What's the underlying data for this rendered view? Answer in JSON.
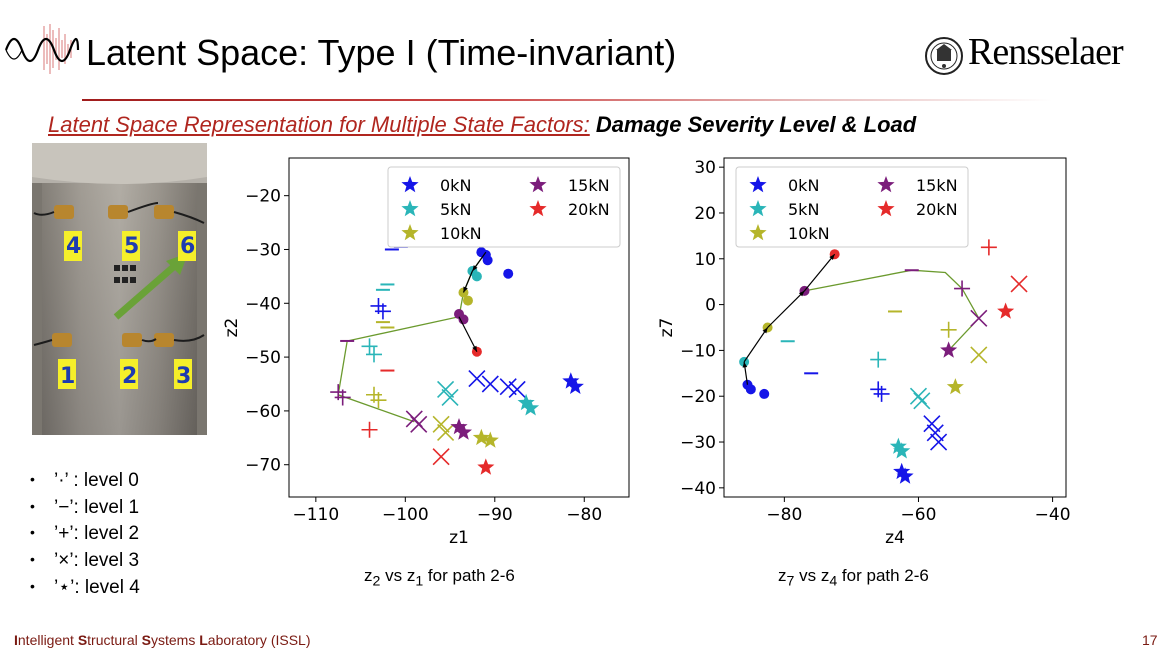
{
  "header": {
    "title": "Latent Space: Type I (Time-invariant)",
    "institution": "Rensselaer"
  },
  "subtitle": {
    "part1": "Latent Space Representation for Multiple State Factors:",
    "part2": "Damage Severity Level & Load"
  },
  "photo": {
    "sensor_labels": [
      "4",
      "5",
      "6",
      "1",
      "2",
      "3"
    ]
  },
  "levels_legend": [
    {
      "bullet": "•",
      "text": "’·’ : level 0"
    },
    {
      "bullet": "•",
      "text": "’−’: level 1"
    },
    {
      "bullet": "•",
      "text": "’+’: level 2"
    },
    {
      "bullet": "•",
      "text": "’×’: level 3"
    },
    {
      "bullet": "•",
      "text": "’⋆’: level 4"
    }
  ],
  "colors": {
    "0kN": "#1515e8",
    "5kN": "#2ab5b8",
    "10kN": "#b5b52a",
    "15kN": "#7b1d7b",
    "20kN": "#e52a2a",
    "path": "#6b9a2e",
    "accent": "#b0261f"
  },
  "captions": {
    "left": {
      "a": "z",
      "a_sub": "2",
      "mid": " vs z",
      "b_sub": "1",
      "rest": " for path 2-6"
    },
    "right": {
      "a": "z",
      "a_sub": "7",
      "mid": " vs z",
      "b_sub": "4",
      "rest": " for path 2-6"
    }
  },
  "footer": {
    "lab_parts": [
      "I",
      "ntelligent ",
      "S",
      "tructural ",
      "S",
      "ystems ",
      "L",
      "aboratory (ISSL)"
    ],
    "page_number": "17"
  },
  "chart_data": [
    {
      "type": "scatter",
      "title": "",
      "xlabel": "z1",
      "ylabel": "z2",
      "xlim": [
        -113,
        -75
      ],
      "ylim": [
        -76,
        -13
      ],
      "xticks": [
        -110,
        -100,
        -90,
        -80
      ],
      "yticks": [
        -20,
        -30,
        -40,
        -50,
        -60,
        -70
      ],
      "legend": {
        "placement": "top-right",
        "entries": [
          {
            "label": "0kN",
            "color": "#1515e8"
          },
          {
            "label": "15kN",
            "color": "#7b1d7b"
          },
          {
            "label": "5kN",
            "color": "#2ab5b8"
          },
          {
            "label": "20kN",
            "color": "#e52a2a"
          },
          {
            "label": "10kN",
            "color": "#b5b52a"
          }
        ]
      },
      "series": [
        {
          "load": "0kN",
          "points": [
            {
              "x": -91.5,
              "y": -30.5,
              "level": 0
            },
            {
              "x": -91,
              "y": -31,
              "level": 0
            },
            {
              "x": -90.8,
              "y": -32,
              "level": 0
            },
            {
              "x": -88.5,
              "y": -34.5,
              "level": 0
            },
            {
              "x": -100.5,
              "y": -29.5,
              "level": 1
            },
            {
              "x": -101.5,
              "y": -30,
              "level": 1
            },
            {
              "x": -103,
              "y": -40.5,
              "level": 2
            },
            {
              "x": -102.5,
              "y": -41.5,
              "level": 2
            },
            {
              "x": -92,
              "y": -54,
              "level": 3
            },
            {
              "x": -90.5,
              "y": -55,
              "level": 3
            },
            {
              "x": -88.5,
              "y": -55.5,
              "level": 3
            },
            {
              "x": -87.5,
              "y": -56,
              "level": 3
            },
            {
              "x": -81.5,
              "y": -54.5,
              "level": 4
            },
            {
              "x": -81,
              "y": -55.5,
              "level": 4
            }
          ]
        },
        {
          "load": "5kN",
          "points": [
            {
              "x": -92.5,
              "y": -34,
              "level": 0
            },
            {
              "x": -92,
              "y": -35,
              "level": 0
            },
            {
              "x": -102,
              "y": -36.5,
              "level": 1
            },
            {
              "x": -102.5,
              "y": -37.5,
              "level": 1
            },
            {
              "x": -104,
              "y": -48,
              "level": 2
            },
            {
              "x": -103.5,
              "y": -49.5,
              "level": 2
            },
            {
              "x": -95.5,
              "y": -56,
              "level": 3
            },
            {
              "x": -95,
              "y": -57.5,
              "level": 3
            },
            {
              "x": -86.5,
              "y": -58.5,
              "level": 4
            },
            {
              "x": -86,
              "y": -59.5,
              "level": 4
            }
          ]
        },
        {
          "load": "10kN",
          "points": [
            {
              "x": -93.5,
              "y": -38,
              "level": 0
            },
            {
              "x": -93,
              "y": -39.5,
              "level": 0
            },
            {
              "x": -102.5,
              "y": -43.5,
              "level": 1
            },
            {
              "x": -102,
              "y": -44.5,
              "level": 1
            },
            {
              "x": -103.5,
              "y": -57,
              "level": 2
            },
            {
              "x": -103,
              "y": -58,
              "level": 2
            },
            {
              "x": -96,
              "y": -62.5,
              "level": 3
            },
            {
              "x": -95.5,
              "y": -64,
              "level": 3
            },
            {
              "x": -91.5,
              "y": -65,
              "level": 4
            },
            {
              "x": -90.5,
              "y": -65.5,
              "level": 4
            }
          ]
        },
        {
          "load": "15kN",
          "points": [
            {
              "x": -94,
              "y": -42,
              "level": 0
            },
            {
              "x": -93.5,
              "y": -43,
              "level": 0
            },
            {
              "x": -106.5,
              "y": -47,
              "level": 1
            },
            {
              "x": -107.5,
              "y": -56.5,
              "level": 2
            },
            {
              "x": -107,
              "y": -57.5,
              "level": 2
            },
            {
              "x": -99,
              "y": -61.5,
              "level": 3
            },
            {
              "x": -98.5,
              "y": -62.5,
              "level": 3
            },
            {
              "x": -94,
              "y": -63,
              "level": 4
            },
            {
              "x": -93.5,
              "y": -64,
              "level": 4
            }
          ]
        },
        {
          "load": "20kN",
          "points": [
            {
              "x": -92,
              "y": -49,
              "level": 0
            },
            {
              "x": -102,
              "y": -52.5,
              "level": 1
            },
            {
              "x": -104,
              "y": -63.5,
              "level": 2
            },
            {
              "x": -96,
              "y": -68.5,
              "level": 3
            },
            {
              "x": -91,
              "y": -70.5,
              "level": 4
            }
          ]
        }
      ],
      "path": {
        "color": "#6b9a2e",
        "points": [
          [
            -91,
            -30.5
          ],
          [
            -92.5,
            -34
          ],
          [
            -93.5,
            -38
          ],
          [
            -94,
            -42.5
          ],
          [
            -106.5,
            -47
          ],
          [
            -107.5,
            -57
          ],
          [
            -99,
            -62
          ]
        ]
      },
      "arrows": [
        {
          "from": [
            -91,
            -30.5
          ],
          "to": [
            -92.5,
            -34
          ]
        },
        {
          "from": [
            -92.5,
            -34
          ],
          "to": [
            -93.5,
            -38
          ]
        },
        {
          "from": [
            -94,
            -42.5
          ],
          "to": [
            -92,
            -49
          ]
        }
      ]
    },
    {
      "type": "scatter",
      "title": "",
      "xlabel": "z4",
      "ylabel": "z7",
      "xlim": [
        -89,
        -38
      ],
      "ylim": [
        -42,
        32
      ],
      "xticks": [
        -80,
        -60,
        -40
      ],
      "yticks": [
        30,
        20,
        10,
        0,
        -10,
        -20,
        -30,
        -40
      ],
      "legend": {
        "placement": "top-left",
        "entries": [
          {
            "label": "0kN",
            "color": "#1515e8"
          },
          {
            "label": "15kN",
            "color": "#7b1d7b"
          },
          {
            "label": "5kN",
            "color": "#2ab5b8"
          },
          {
            "label": "20kN",
            "color": "#e52a2a"
          },
          {
            "label": "10kN",
            "color": "#b5b52a"
          }
        ]
      },
      "series": [
        {
          "load": "0kN",
          "points": [
            {
              "x": -85.5,
              "y": -17.5,
              "level": 0
            },
            {
              "x": -85,
              "y": -18.5,
              "level": 0
            },
            {
              "x": -83,
              "y": -19.5,
              "level": 0
            },
            {
              "x": -76,
              "y": -15,
              "level": 1
            },
            {
              "x": -66,
              "y": -18.5,
              "level": 2
            },
            {
              "x": -65.5,
              "y": -19.5,
              "level": 2
            },
            {
              "x": -58,
              "y": -26,
              "level": 3
            },
            {
              "x": -57.5,
              "y": -28,
              "level": 3
            },
            {
              "x": -57,
              "y": -30,
              "level": 3
            },
            {
              "x": -62.5,
              "y": -36.5,
              "level": 4
            },
            {
              "x": -62,
              "y": -37.5,
              "level": 4
            }
          ]
        },
        {
          "load": "5kN",
          "points": [
            {
              "x": -86,
              "y": -12.5,
              "level": 0
            },
            {
              "x": -79.5,
              "y": -8,
              "level": 1
            },
            {
              "x": -66,
              "y": -12,
              "level": 2
            },
            {
              "x": -60,
              "y": -20,
              "level": 3
            },
            {
              "x": -59.5,
              "y": -21,
              "level": 3
            },
            {
              "x": -63,
              "y": -31,
              "level": 4
            },
            {
              "x": -62.5,
              "y": -32,
              "level": 4
            }
          ]
        },
        {
          "load": "10kN",
          "points": [
            {
              "x": -82.5,
              "y": -5,
              "level": 0
            },
            {
              "x": -63.5,
              "y": -1.5,
              "level": 1
            },
            {
              "x": -55.5,
              "y": -5.5,
              "level": 2
            },
            {
              "x": -51,
              "y": -11,
              "level": 3
            },
            {
              "x": -54.5,
              "y": -18,
              "level": 4
            }
          ]
        },
        {
          "load": "15kN",
          "points": [
            {
              "x": -77,
              "y": 3,
              "level": 0
            },
            {
              "x": -61,
              "y": 7.5,
              "level": 1
            },
            {
              "x": -53.5,
              "y": 3.5,
              "level": 2
            },
            {
              "x": -51,
              "y": -3,
              "level": 3
            },
            {
              "x": -55.5,
              "y": -10,
              "level": 4
            }
          ]
        },
        {
          "load": "20kN",
          "points": [
            {
              "x": -72.5,
              "y": 11,
              "level": 0
            },
            {
              "x": -54,
              "y": 15.5,
              "level": 1
            },
            {
              "x": -49.5,
              "y": 12.5,
              "level": 2
            },
            {
              "x": -45,
              "y": 4.5,
              "level": 3
            },
            {
              "x": -47,
              "y": -1.5,
              "level": 4
            }
          ]
        }
      ],
      "path": {
        "color": "#6b9a2e",
        "points": [
          [
            -77,
            3
          ],
          [
            -61,
            7.5
          ],
          [
            -56,
            7
          ],
          [
            -53.5,
            3.5
          ],
          [
            -51,
            -3
          ],
          [
            -55.5,
            -10
          ]
        ]
      },
      "arrows": [
        {
          "from": [
            -85.5,
            -17.5
          ],
          "to": [
            -86,
            -12.5
          ]
        },
        {
          "from": [
            -86,
            -12.5
          ],
          "to": [
            -82.5,
            -5
          ]
        },
        {
          "from": [
            -82.5,
            -5
          ],
          "to": [
            -77,
            3
          ]
        },
        {
          "from": [
            -77,
            3
          ],
          "to": [
            -72.5,
            11
          ]
        }
      ]
    }
  ]
}
